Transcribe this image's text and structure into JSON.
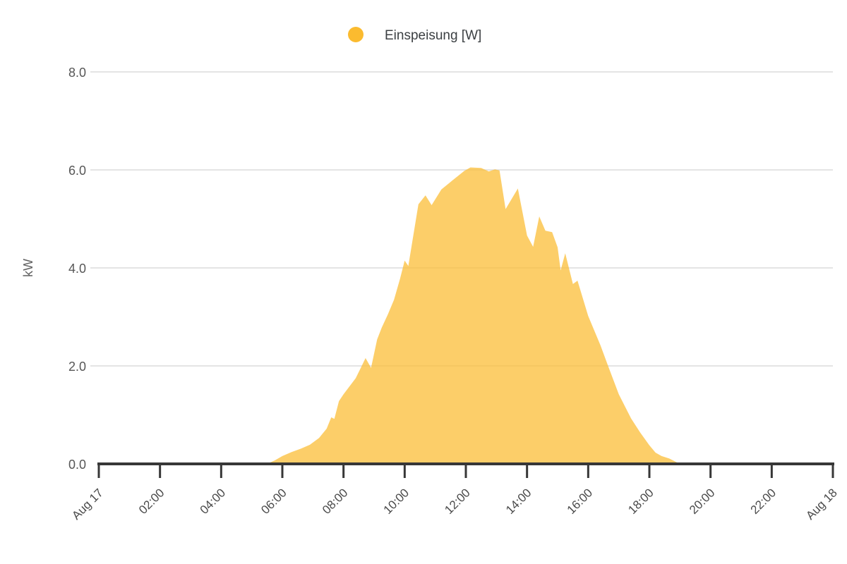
{
  "legend": {
    "position": "top-center",
    "items": [
      {
        "label": "Einspeisung [W]",
        "marker": "circle",
        "color": "#FBBB2F"
      }
    ]
  },
  "colors": {
    "series_fill": "#FBBB2F",
    "series_fill_opacity": 0.72,
    "gridline": "#E4E4E4",
    "axis_line": "#373737",
    "tick_label": "#4a4a4a",
    "y_label": "#565656",
    "axis_title": "#616161",
    "background": "#FFFFFF"
  },
  "chart_data": {
    "type": "area",
    "title": "",
    "xlabel": "",
    "ylabel": "kW",
    "xlim_hours": [
      0,
      24
    ],
    "ylim": [
      0,
      8
    ],
    "grid": "horizontal-only",
    "legend_position": "top-center",
    "x_ticks_hours": [
      0,
      2,
      4,
      6,
      8,
      10,
      12,
      14,
      16,
      18,
      20,
      22,
      24
    ],
    "x_tick_labels": [
      "Aug 17",
      "02:00",
      "04:00",
      "06:00",
      "08:00",
      "10:00",
      "12:00",
      "14:00",
      "16:00",
      "18:00",
      "20:00",
      "22:00",
      "Aug 18"
    ],
    "y_ticks": [
      0,
      2,
      4,
      6,
      8
    ],
    "y_tick_labels": [
      "0.0",
      "2.0",
      "4.0",
      "6.0",
      "8.0"
    ],
    "series": [
      {
        "name": "Einspeisung [W]",
        "unit_displayed": "kW",
        "color": "#FBBB2F",
        "fill_opacity": 0.72,
        "points_hour_kw": [
          [
            5.5,
            0.0
          ],
          [
            5.75,
            0.07
          ],
          [
            6.0,
            0.16
          ],
          [
            6.3,
            0.24
          ],
          [
            6.6,
            0.31
          ],
          [
            6.9,
            0.39
          ],
          [
            7.2,
            0.53
          ],
          [
            7.45,
            0.72
          ],
          [
            7.6,
            0.95
          ],
          [
            7.7,
            0.92
          ],
          [
            7.85,
            1.28
          ],
          [
            8.0,
            1.42
          ],
          [
            8.4,
            1.75
          ],
          [
            8.72,
            2.16
          ],
          [
            8.9,
            1.96
          ],
          [
            9.1,
            2.54
          ],
          [
            9.25,
            2.78
          ],
          [
            9.45,
            3.05
          ],
          [
            9.65,
            3.35
          ],
          [
            9.85,
            3.78
          ],
          [
            10.0,
            4.15
          ],
          [
            10.12,
            4.04
          ],
          [
            10.45,
            5.3
          ],
          [
            10.68,
            5.48
          ],
          [
            10.88,
            5.28
          ],
          [
            11.2,
            5.6
          ],
          [
            11.55,
            5.78
          ],
          [
            11.95,
            5.98
          ],
          [
            12.15,
            6.05
          ],
          [
            12.5,
            6.04
          ],
          [
            12.75,
            5.97
          ],
          [
            12.95,
            6.01
          ],
          [
            13.1,
            5.99
          ],
          [
            13.3,
            5.2
          ],
          [
            13.7,
            5.62
          ],
          [
            14.0,
            4.66
          ],
          [
            14.2,
            4.43
          ],
          [
            14.4,
            5.05
          ],
          [
            14.6,
            4.76
          ],
          [
            14.82,
            4.73
          ],
          [
            15.0,
            4.42
          ],
          [
            15.1,
            3.95
          ],
          [
            15.25,
            4.3
          ],
          [
            15.5,
            3.67
          ],
          [
            15.65,
            3.74
          ],
          [
            16.0,
            3.02
          ],
          [
            16.4,
            2.42
          ],
          [
            16.65,
            2.0
          ],
          [
            17.0,
            1.42
          ],
          [
            17.4,
            0.93
          ],
          [
            17.7,
            0.64
          ],
          [
            18.0,
            0.38
          ],
          [
            18.2,
            0.23
          ],
          [
            18.4,
            0.16
          ],
          [
            18.65,
            0.11
          ],
          [
            18.9,
            0.03
          ],
          [
            19.05,
            0.0
          ]
        ]
      }
    ]
  }
}
